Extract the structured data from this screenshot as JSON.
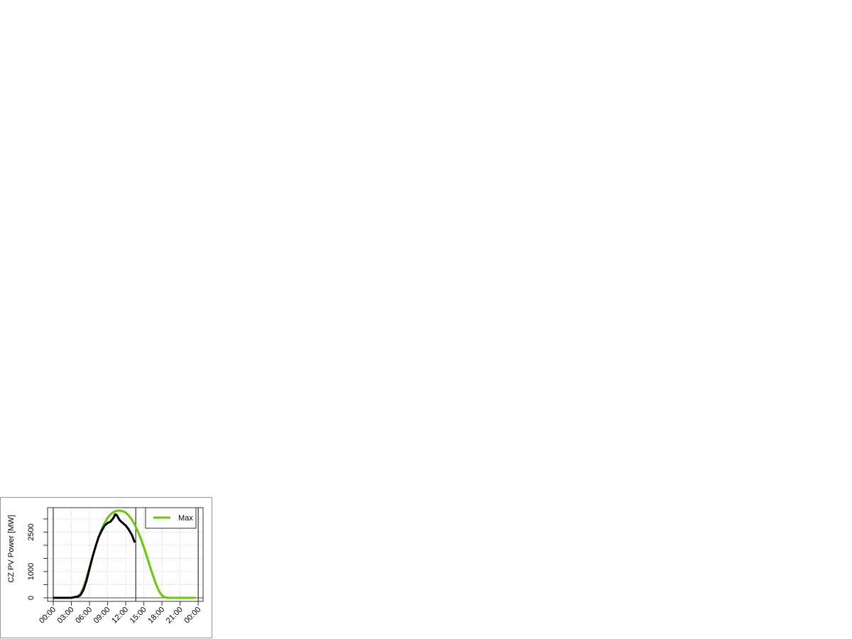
{
  "chart_data": {
    "type": "line",
    "title": "",
    "xlabel": "",
    "ylabel": "CZ PV Power [MW]",
    "xlim_hours": [
      -0.94,
      24.8
    ],
    "ylim": [
      -135,
      3430
    ],
    "x_tick_labels": [
      "00:00",
      "03:00",
      "06:00",
      "09:00",
      "12:00",
      "15:00",
      "18:00",
      "21:00",
      "00:00"
    ],
    "y_ticks": [
      0,
      500,
      1000,
      1500,
      2000,
      2500,
      3000
    ],
    "y_tick_labels": [
      {
        "value": 0,
        "label": "0"
      },
      {
        "value": 1000,
        "label": "1000"
      },
      {
        "value": 2500,
        "label": "2500"
      }
    ],
    "grid": true,
    "vertical_markers": [
      "00:00",
      "24:00",
      "13:40"
    ],
    "legend": {
      "position": "top-right",
      "entries": [
        {
          "label": "Max",
          "color": "#66cc00"
        }
      ]
    },
    "series": [
      {
        "name": "Max",
        "color": "#66cc00",
        "x": [
          "00:00",
          "01:00",
          "02:00",
          "03:00",
          "03:30",
          "04:00",
          "04:30",
          "05:00",
          "05:30",
          "06:00",
          "06:30",
          "07:00",
          "07:30",
          "08:00",
          "08:30",
          "09:00",
          "09:30",
          "10:00",
          "10:30",
          "11:00",
          "11:30",
          "12:00",
          "12:30",
          "13:00",
          "13:30",
          "14:00",
          "14:30",
          "15:00",
          "15:30",
          "16:00",
          "16:30",
          "17:00",
          "17:30",
          "18:00",
          "18:30",
          "19:00",
          "20:00",
          "21:00",
          "22:00",
          "23:00",
          "23:30"
        ],
        "values": [
          0,
          0,
          0,
          0,
          20,
          50,
          150,
          400,
          750,
          1150,
          1550,
          1950,
          2300,
          2600,
          2850,
          3050,
          3180,
          3270,
          3310,
          3320,
          3300,
          3240,
          3130,
          2980,
          2780,
          2530,
          2250,
          1920,
          1570,
          1200,
          850,
          520,
          260,
          90,
          20,
          0,
          0,
          0,
          0,
          0,
          0
        ]
      },
      {
        "color": "#000000",
        "x": [
          "00:00",
          "01:00",
          "02:00",
          "03:00",
          "03:30",
          "04:00",
          "04:30",
          "05:00",
          "05:30",
          "06:00",
          "06:30",
          "07:00",
          "07:30",
          "08:00",
          "08:30",
          "09:00",
          "09:30",
          "10:00",
          "10:15",
          "10:30",
          "11:00",
          "11:30",
          "12:00",
          "12:30",
          "13:00",
          "13:30"
        ],
        "values": [
          0,
          0,
          0,
          0,
          30,
          40,
          100,
          300,
          650,
          1100,
          1550,
          1950,
          2300,
          2550,
          2750,
          2850,
          2900,
          3050,
          3180,
          3150,
          2950,
          2850,
          2750,
          2600,
          2400,
          2100
        ]
      }
    ]
  }
}
